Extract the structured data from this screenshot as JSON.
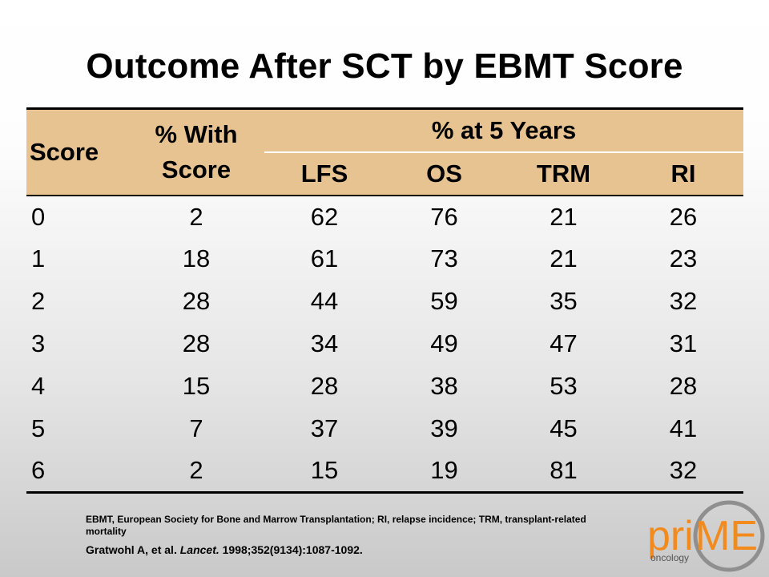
{
  "title": "Outcome After SCT by EBMT Score",
  "table": {
    "header_score": "Score",
    "header_with_line1": "% With",
    "header_with_line2": "Score",
    "header_group": "% at 5 Years",
    "subheaders": [
      "LFS",
      "OS",
      "TRM",
      "RI"
    ],
    "rows": [
      [
        "0",
        "2",
        "62",
        "76",
        "21",
        "26"
      ],
      [
        "1",
        "18",
        "61",
        "73",
        "21",
        "23"
      ],
      [
        "2",
        "28",
        "44",
        "59",
        "35",
        "32"
      ],
      [
        "3",
        "28",
        "34",
        "49",
        "47",
        "31"
      ],
      [
        "4",
        "15",
        "28",
        "38",
        "53",
        "28"
      ],
      [
        "5",
        "7",
        "37",
        "39",
        "45",
        "41"
      ],
      [
        "6",
        "2",
        "15",
        "19",
        "81",
        "32"
      ]
    ]
  },
  "footnote": "EBMT, European Society for Bone and Marrow Transplantation; RI, relapse incidence; TRM, transplant-related mortality",
  "citation": {
    "authors": "Gratwohl A, et al.",
    "journal": "Lancet.",
    "details": "1998;352(9134):1087-1092."
  },
  "logo": {
    "text_pri": "pri",
    "text_me": "ME",
    "text_sub": "oncology",
    "colors": {
      "orange": "#f28a1e",
      "gray": "#8f8f8f"
    }
  }
}
